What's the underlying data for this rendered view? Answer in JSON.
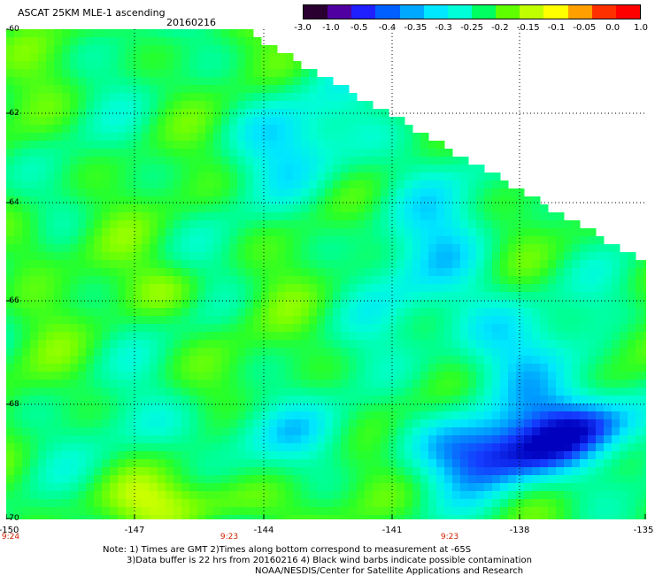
{
  "title": "ASCAT 25KM MLE-1 ascending",
  "date": "20160216",
  "colorbar": {
    "labels": [
      "-3.0",
      "-1.0",
      "-0.5",
      "-0.4",
      "-0.35",
      "-0.3",
      "-0.25",
      "-0.2",
      "-0.15",
      "-0.1",
      "-0.05",
      "0.0",
      "1.0"
    ],
    "colors": [
      "#2a0030",
      "#5000a0",
      "#2020ff",
      "#0060ff",
      "#00a8ff",
      "#00e8ff",
      "#00ffd8",
      "#00ff60",
      "#60ff00",
      "#c0ff00",
      "#ffff00",
      "#ffa000",
      "#ff3000",
      "#ff0000"
    ]
  },
  "lat_labels": [
    "-60",
    "-62",
    "-64",
    "-66",
    "-68",
    "-70"
  ],
  "lon_labels": [
    "-150",
    "-147",
    "-144",
    "-141",
    "-138",
    "-135"
  ],
  "time_labels": [
    "9:24",
    "9:23",
    "9:23"
  ],
  "notes": [
    "Note: 1) Times are GMT 2)Times along bottom correspond to measurement at -65S",
    "3)Data buffer is 22 hrs from 20160216 4) Black wind barbs indicate possible contamination",
    "NOAA/NESDIS/Center for Satellite Applications and Research"
  ]
}
